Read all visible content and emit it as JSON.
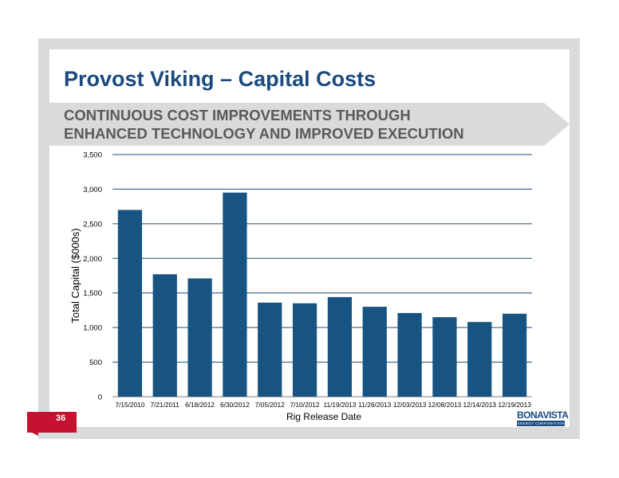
{
  "slide": {
    "title": "Provost Viking – Capital Costs",
    "subtitle_line1": "CONTINUOUS COST IMPROVEMENTS THROUGH",
    "subtitle_line2": "ENHANCED TECHNOLOGY AND IMPROVED EXECUTION",
    "page_number": "36",
    "logo_text": "BONAVISTA",
    "logo_subtext": "ENERGY CORPORATION"
  },
  "colors": {
    "bar": "#175482",
    "gridline": "#1f4e79",
    "title": "#1a4a7e",
    "page_tab": "#c41230"
  },
  "chart_data": {
    "type": "bar",
    "categories": [
      "7/15/2010",
      "7/21/2011",
      "6/18/2012",
      "6/30/2012",
      "7/05/2012",
      "7/10/2012",
      "11/19/2013",
      "11/26/2013",
      "12/03/2013",
      "12/08/2013",
      "12/14/2013",
      "12/19/2013"
    ],
    "values": [
      2700,
      1770,
      1710,
      2950,
      1360,
      1350,
      1440,
      1300,
      1210,
      1150,
      1080,
      1200
    ],
    "xlabel": "Rig Release Date",
    "ylabel": "Total Capital ($000s)",
    "ylim": [
      0,
      3500
    ],
    "yticks": [
      0,
      500,
      1000,
      1500,
      2000,
      2500,
      3000,
      3500
    ],
    "ytick_labels": [
      "0",
      "500",
      "1,000",
      "1,500",
      "2,000",
      "2,500",
      "3,000",
      "3,500"
    ],
    "grid": true,
    "legend": "none"
  }
}
